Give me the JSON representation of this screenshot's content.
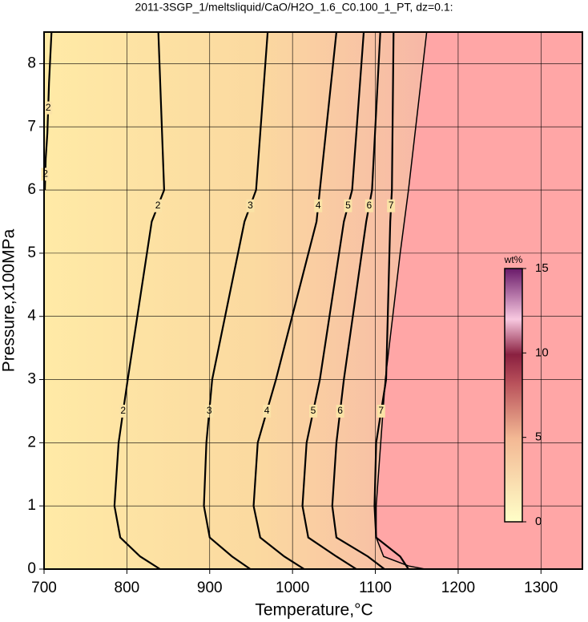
{
  "chart_data": {
    "type": "contour",
    "title": "2011-3SGP_1/meltsliquid/CaO/H2O_1.6_C0.100_1_PT, dz=0.1:",
    "x_label": "Temperature,°C",
    "y_label": "Pressure,x100MPa",
    "xlim": [
      700,
      1350
    ],
    "ylim": [
      0,
      8.5
    ],
    "xticks": [
      700,
      800,
      900,
      1000,
      1100,
      1200,
      1300
    ],
    "yticks": [
      0,
      1,
      2,
      3,
      4,
      5,
      6,
      7,
      8
    ],
    "grid": true,
    "contours": [
      {
        "level": 2,
        "x": [
          838,
          845,
          830,
          801,
          790,
          785,
          792,
          816,
          840
        ],
        "y": [
          8.5,
          6,
          5.5,
          3,
          2,
          1,
          0.5,
          0.2,
          0
        ]
      },
      {
        "level": 3,
        "x": [
          970,
          956,
          942,
          903,
          896,
          893,
          900,
          927,
          949
        ],
        "y": [
          8.5,
          6,
          5.5,
          3,
          2,
          1,
          0.5,
          0.2,
          0
        ]
      },
      {
        "level": 4,
        "x": [
          1053,
          1033,
          1029,
          980,
          958,
          953,
          961,
          990,
          1014
        ],
        "y": [
          8.5,
          6,
          5.5,
          3,
          2,
          1,
          0.5,
          0.2,
          0
        ]
      },
      {
        "level": 5,
        "x": [
          1086,
          1072,
          1062,
          1033,
          1017,
          1012,
          1019,
          1053,
          1077
        ],
        "y": [
          8.5,
          6,
          5.5,
          3,
          2,
          1,
          0.5,
          0.2,
          0
        ]
      },
      {
        "level": 6,
        "x": [
          1106,
          1096,
          1089,
          1062,
          1053,
          1048,
          1053,
          1091,
          1111
        ],
        "y": [
          8.5,
          6,
          5.5,
          3,
          2,
          1,
          0.5,
          0.2,
          0
        ]
      },
      {
        "level": 7,
        "x": [
          1122,
          1120,
          1118,
          1113,
          1101,
          1099,
          1101,
          1130,
          1140
        ],
        "y": [
          8.5,
          6,
          5.5,
          3,
          2,
          1,
          0.5,
          0.2,
          0
        ]
      },
      {
        "level": 2,
        "x": [
          709,
          706,
          704,
          702,
          701
        ],
        "y": [
          8.5,
          7.7,
          6.9,
          6.5,
          6
        ]
      }
    ],
    "melt_free_region": {
      "color": "#ffa6a6",
      "x": [
        1162,
        1140,
        1130,
        1112,
        1101,
        1101,
        1110,
        1140,
        1160
      ],
      "y": [
        8.5,
        6,
        5,
        3,
        1,
        0.5,
        0.2,
        0.05,
        0
      ]
    },
    "colorbar": {
      "label": "wt%",
      "lim": [
        0,
        15
      ],
      "ticks": [
        0,
        5,
        10,
        15
      ]
    }
  }
}
